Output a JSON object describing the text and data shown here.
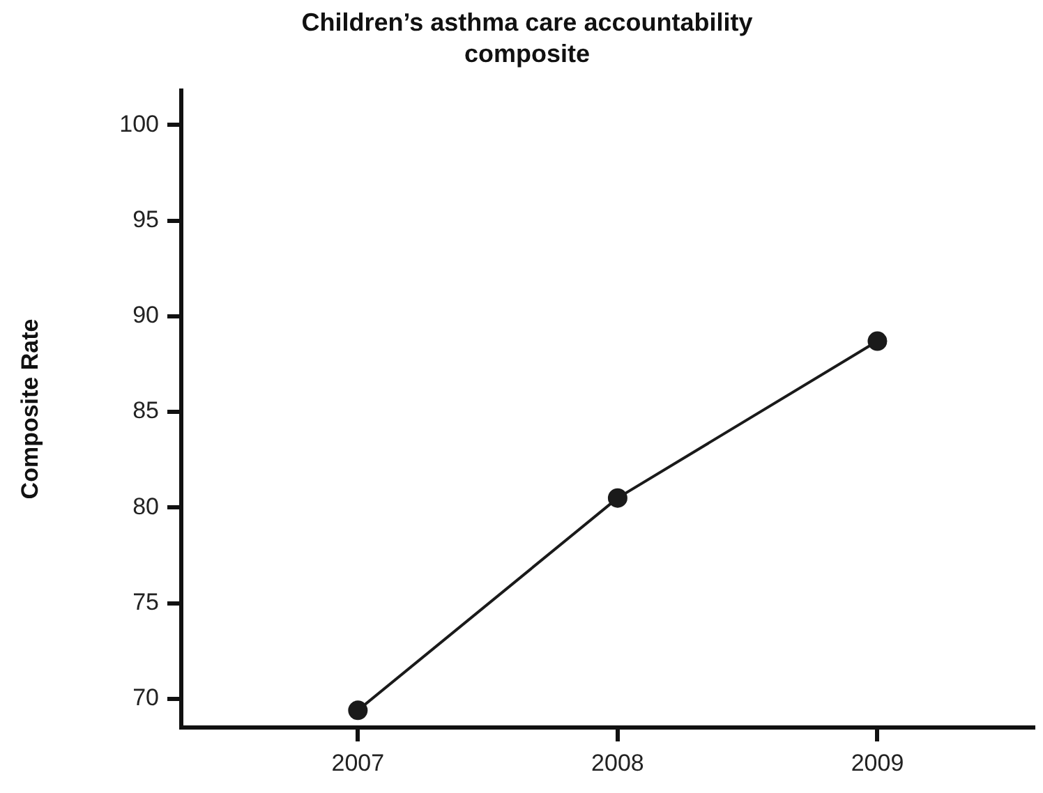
{
  "chart_data": {
    "type": "line",
    "title": "Children’s asthma care accountability composite",
    "ylabel": "Composite Rate",
    "x": [
      2007,
      2008,
      2009
    ],
    "series": [
      {
        "color": "#1a1a1a",
        "values": [
          69.4,
          80.5,
          88.7
        ]
      }
    ],
    "xlim": [
      2006.32,
      2009.6
    ],
    "xticks": [
      2007,
      2008,
      2009
    ],
    "ylim": [
      68.5,
      101.8
    ],
    "yticks": [
      70,
      75,
      80,
      85,
      90,
      95,
      100
    ],
    "grid": false,
    "legend": false,
    "marker": "circle",
    "line_style": "solid"
  }
}
